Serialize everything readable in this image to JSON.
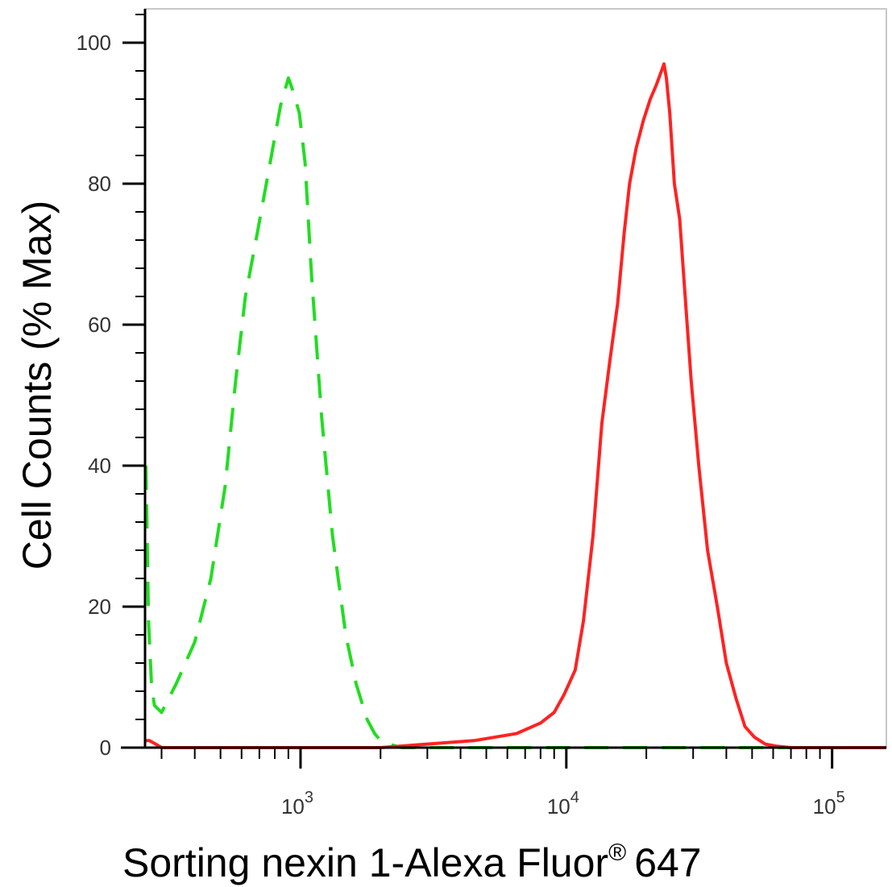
{
  "chart_data": {
    "type": "line",
    "title": "",
    "xlabel": "Sorting nexin 1-Alexa Fluor",
    "xlabel_superscript": "®",
    "xlabel_suffix": "647",
    "ylabel": "Cell Counts (% Max)",
    "x_scale": "log",
    "xlim": [
      260,
      160000
    ],
    "ylim": [
      0,
      105
    ],
    "grid": false,
    "legend": "none",
    "y_ticks": [
      {
        "value": 0,
        "label": "0"
      },
      {
        "value": 20,
        "label": "20"
      },
      {
        "value": 40,
        "label": "40"
      },
      {
        "value": 60,
        "label": "60"
      },
      {
        "value": 80,
        "label": "80"
      },
      {
        "value": 100,
        "label": "100"
      }
    ],
    "x_major_ticks": [
      {
        "value": 1000,
        "base": "10",
        "exp": "3"
      },
      {
        "value": 10000,
        "base": "10",
        "exp": "4"
      },
      {
        "value": 100000,
        "base": "10",
        "exp": "5"
      }
    ],
    "series": [
      {
        "color": "#22dd22",
        "dash": "dashed",
        "x": [
          262,
          268,
          275,
          282,
          300,
          340,
          400,
          460,
          520,
          570,
          620,
          680,
          760,
          840,
          900,
          940,
          990,
          1040,
          1100,
          1200,
          1320,
          1480,
          1620,
          1780,
          1900,
          2000,
          2150,
          2400,
          3000,
          5000,
          10000,
          30000,
          100000,
          160000
        ],
        "y": [
          40,
          18,
          9,
          6,
          5,
          9,
          15,
          24,
          37,
          52,
          64,
          72,
          82,
          91,
          95,
          93,
          90,
          83,
          67,
          47,
          30,
          16,
          9,
          4,
          2,
          1,
          0.5,
          0,
          0,
          0,
          0,
          0,
          0,
          0
        ]
      },
      {
        "color": "#ff2222",
        "dash": "solid",
        "x": [
          260,
          270,
          285,
          300,
          340,
          400,
          800,
          2000,
          3000,
          4500,
          6500,
          8000,
          9000,
          9800,
          10800,
          11600,
          12600,
          13600,
          14600,
          15600,
          16500,
          17300,
          18300,
          19500,
          20700,
          21800,
          22800,
          23300,
          23800,
          24500,
          25500,
          26700,
          28000,
          29500,
          31500,
          34000,
          37000,
          40000,
          43500,
          47000,
          51000,
          56000,
          62000,
          70000,
          80000,
          100000,
          160000
        ],
        "y": [
          1,
          1,
          0.5,
          0,
          0,
          0,
          0,
          0,
          0.5,
          1,
          2,
          3.5,
          5,
          7.5,
          11,
          18,
          30,
          46,
          55,
          63,
          73,
          80,
          85,
          89,
          92,
          94,
          96,
          97,
          95,
          90,
          80,
          75,
          64,
          52,
          40,
          28,
          20,
          12,
          7,
          3,
          1.5,
          0.5,
          0.2,
          0,
          0,
          0,
          0
        ]
      }
    ]
  }
}
